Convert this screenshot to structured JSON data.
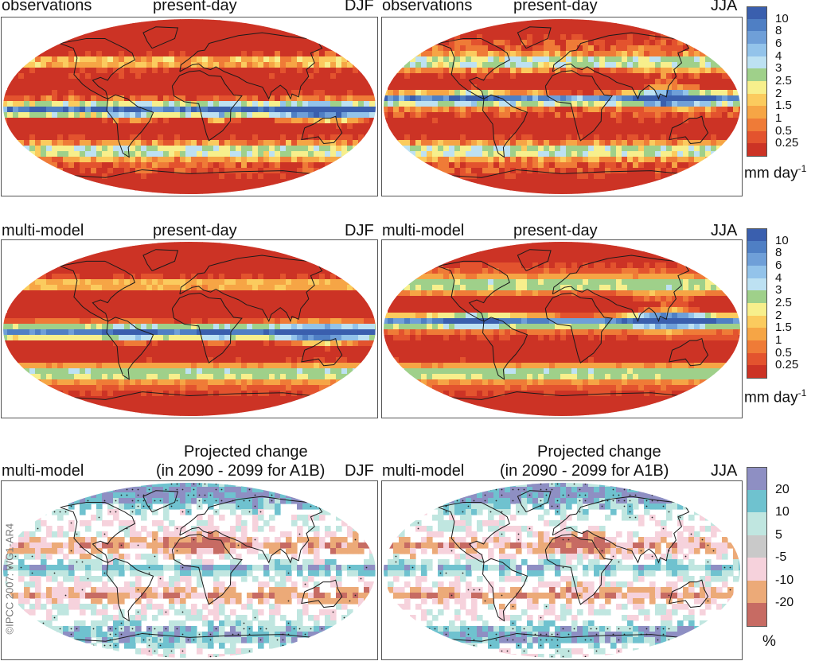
{
  "panels": [
    {
      "left": "observations",
      "center": "present-day",
      "right": "DJF",
      "type": "precip",
      "season": "DJF"
    },
    {
      "left": "observations",
      "center": "present-day",
      "right": "JJA",
      "type": "precip",
      "season": "JJA"
    },
    {
      "left": "multi-model",
      "center": "present-day",
      "right": "DJF",
      "type": "precip",
      "season": "DJF"
    },
    {
      "left": "multi-model",
      "center": "present-day",
      "right": "JJA",
      "type": "precip",
      "season": "JJA"
    },
    {
      "left": "multi-model",
      "center_line1": "Projected change",
      "center_line2": "(in 2090 - 2099 for A1B)",
      "right": "DJF",
      "type": "change",
      "season": "DJF"
    },
    {
      "left": "multi-model",
      "center_line1": "Projected change",
      "center_line2": "(in 2090 - 2099 for A1B)",
      "right": "JJA",
      "type": "change",
      "season": "JJA"
    }
  ],
  "precip_colorbar": {
    "ticks": [
      "10",
      "8",
      "6",
      "4",
      "3",
      "2.5",
      "2",
      "1.5",
      "1",
      "0.5",
      "0.25"
    ],
    "colors": [
      "#3a5fae",
      "#4f7fc4",
      "#6f9fd8",
      "#93c3ea",
      "#bde1f2",
      "#9fd08a",
      "#f7ef8c",
      "#fbcb5e",
      "#f6a545",
      "#ef7b37",
      "#e3532e",
      "#cc3325"
    ],
    "unit_base": "mm day",
    "unit_exp": "-1"
  },
  "change_colorbar": {
    "ticks": [
      "20",
      "10",
      "5",
      "-5",
      "-10",
      "-20"
    ],
    "colors": [
      "#8e8fc3",
      "#6fc2cf",
      "#c0e6e0",
      "#c9c9c9",
      "#f6d2dc",
      "#ecaa78",
      "#c76b63"
    ],
    "unit": "%"
  },
  "copyright": "©IPCC 2007: WG1-AR4"
}
